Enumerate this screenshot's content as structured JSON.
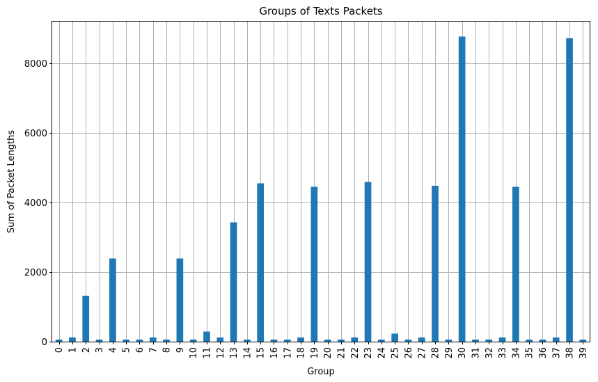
{
  "chart_data": {
    "type": "bar",
    "title": "Groups of Texts Packets",
    "xlabel": "Group",
    "ylabel": "Sum of Packet Lengths",
    "categories": [
      "0",
      "1",
      "2",
      "3",
      "4",
      "5",
      "6",
      "7",
      "8",
      "9",
      "10",
      "11",
      "12",
      "13",
      "14",
      "15",
      "16",
      "17",
      "18",
      "19",
      "20",
      "21",
      "22",
      "23",
      "24",
      "25",
      "26",
      "27",
      "28",
      "29",
      "30",
      "31",
      "32",
      "33",
      "34",
      "35",
      "36",
      "37",
      "38",
      "39"
    ],
    "values": [
      60,
      120,
      1320,
      60,
      2390,
      60,
      60,
      120,
      60,
      2390,
      60,
      290,
      120,
      3430,
      60,
      4550,
      60,
      60,
      120,
      4450,
      60,
      60,
      120,
      4590,
      60,
      230,
      60,
      120,
      4480,
      60,
      8770,
      60,
      60,
      120,
      4450,
      60,
      60,
      120,
      8720,
      60
    ],
    "ylim": [
      0,
      9200
    ],
    "yticks": [
      0,
      2000,
      4000,
      6000,
      8000
    ],
    "ytick_labels": [
      "0",
      "2000",
      "4000",
      "6000",
      "8000"
    ],
    "grid": true,
    "bar_color": "#1f77b4"
  }
}
